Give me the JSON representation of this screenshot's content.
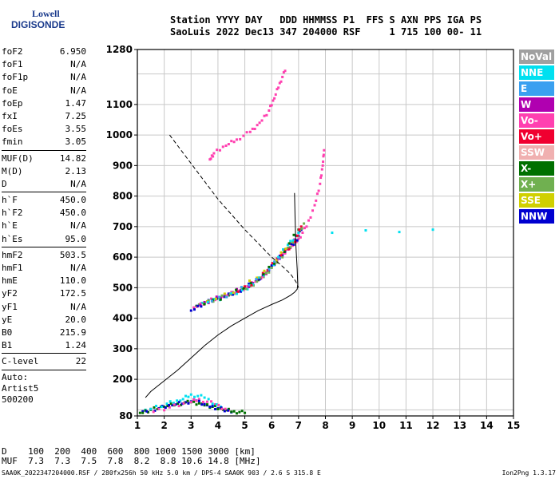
{
  "logo": {
    "line1": "Lowell",
    "line2": "DIGISONDE"
  },
  "header": {
    "line1": "Station YYYY DAY   DDD HHMMSS P1  FFS S AXN PPS IGA PS",
    "line2": "SaoLuis 2022 Dec13 347 204000 RSF     1 715 100 00- 11"
  },
  "params": [
    [
      {
        "k": "foF2",
        "v": "6.950"
      },
      {
        "k": "foF1",
        "v": "N/A"
      },
      {
        "k": "foF1p",
        "v": "N/A"
      },
      {
        "k": "foE",
        "v": "N/A"
      },
      {
        "k": "foEp",
        "v": "1.47"
      },
      {
        "k": "fxI",
        "v": "7.25"
      },
      {
        "k": "foEs",
        "v": "3.55"
      },
      {
        "k": "fmin",
        "v": "3.05"
      }
    ],
    [
      {
        "k": "MUF(D)",
        "v": "14.82"
      },
      {
        "k": "M(D)",
        "v": "2.13"
      },
      {
        "k": "D",
        "v": "N/A"
      }
    ],
    [
      {
        "k": "h`F",
        "v": "450.0"
      },
      {
        "k": "h`F2",
        "v": "450.0"
      },
      {
        "k": "h`E",
        "v": "N/A"
      },
      {
        "k": "h`Es",
        "v": "95.0"
      }
    ],
    [
      {
        "k": "hmF2",
        "v": "503.5"
      },
      {
        "k": "hmF1",
        "v": "N/A"
      },
      {
        "k": "hmE",
        "v": "110.0"
      },
      {
        "k": "yF2",
        "v": "172.5"
      },
      {
        "k": "yF1",
        "v": "N/A"
      },
      {
        "k": "yE",
        "v": "20.0"
      },
      {
        "k": "B0",
        "v": "215.9"
      },
      {
        "k": "B1",
        "v": "1.24"
      }
    ],
    [
      {
        "k": "C-level",
        "v": "22"
      }
    ]
  ],
  "auto": {
    "line1": "Auto:",
    "line2": "Artist5",
    "line3": "500200"
  },
  "legend": [
    {
      "label": "NoVal",
      "color": "#a0a0a0"
    },
    {
      "label": "NNE",
      "color": "#00e0f0"
    },
    {
      "label": "E",
      "color": "#3aa0f0"
    },
    {
      "label": "W",
      "color": "#b000b0"
    },
    {
      "label": "Vo-",
      "color": "#ff40b0"
    },
    {
      "label": "Vo+",
      "color": "#f00030"
    },
    {
      "label": "SSW",
      "color": "#f0b0b0"
    },
    {
      "label": "X-",
      "color": "#007000"
    },
    {
      "label": "X+",
      "color": "#70b050"
    },
    {
      "label": "SSE",
      "color": "#d0d000"
    },
    {
      "label": "NNW",
      "color": "#0000d0"
    }
  ],
  "bottom": {
    "line1": "D    100  200  400  600  800 1000 1500 3000 [km]",
    "line2": "MUF  7.3  7.3  7.5  7.8  8.2  8.8 10.6 14.8 [MHz]"
  },
  "footer": "SAA0K_2022347204000.RSF / 280fx256h 50 kHz 5.0 km / DPS-4 SAA0K 903 / 2.6 S 315.8 E",
  "version": "Ion2Png 1.3.17",
  "chart_data": {
    "type": "scatter",
    "xlim": [
      1,
      15
    ],
    "ylim": [
      80,
      1280
    ],
    "x_ticks": [
      1,
      2,
      3,
      4,
      5,
      6,
      7,
      8,
      9,
      10,
      11,
      12,
      13,
      14,
      15
    ],
    "y_ticks": [
      80,
      200,
      300,
      400,
      500,
      600,
      700,
      800,
      900,
      1000,
      1100,
      1280
    ],
    "y_ticks_minor_grid": [
      100,
      200,
      300,
      400,
      500,
      600,
      700,
      800,
      900,
      1000,
      1100,
      1200
    ],
    "grid": true,
    "series": [
      {
        "name": "Vo-",
        "type": "scatter",
        "color": "#ff40b0",
        "x": [
          3.1,
          3.6,
          4.2,
          4.8,
          5.4,
          5.9,
          6.3,
          6.7,
          7.0,
          7.3,
          7.6,
          7.8,
          7.9,
          7.95
        ],
        "y": [
          435,
          455,
          470,
          490,
          520,
          560,
          600,
          630,
          660,
          700,
          770,
          840,
          900,
          950
        ]
      },
      {
        "name": "W",
        "type": "scatter",
        "color": "#b000b0",
        "x": [
          3.2,
          3.8,
          4.4,
          5.0,
          5.6,
          6.0,
          6.4,
          6.8,
          7.0
        ],
        "y": [
          440,
          460,
          480,
          500,
          530,
          570,
          610,
          650,
          680
        ]
      },
      {
        "name": "NNW",
        "type": "scatter",
        "color": "#0000d0",
        "x": [
          3.0,
          3.5,
          4.1,
          4.7,
          5.3,
          5.8,
          6.2,
          6.6,
          6.9,
          7.1
        ],
        "y": [
          425,
          450,
          465,
          485,
          515,
          550,
          590,
          625,
          650,
          690
        ]
      },
      {
        "name": "X+",
        "type": "scatter",
        "color": "#70b050",
        "x": [
          3.3,
          4.0,
          4.6,
          5.2,
          5.7,
          6.1,
          6.5,
          6.9,
          7.2
        ],
        "y": [
          445,
          465,
          480,
          505,
          535,
          575,
          615,
          655,
          710
        ]
      },
      {
        "name": "NNE",
        "type": "scatter",
        "color": "#00e0f0",
        "x": [
          3.4,
          4.3,
          5.1,
          5.9,
          6.6,
          7.0,
          12.0
        ],
        "y": [
          450,
          470,
          495,
          560,
          640,
          680,
          690
        ]
      },
      {
        "name": "Vo+",
        "type": "scatter",
        "color": "#f00030",
        "x": [
          4.5,
          5.5,
          6.2,
          6.8,
          7.1
        ],
        "y": [
          478,
          525,
          595,
          640,
          700
        ]
      },
      {
        "name": "X-",
        "type": "scatter",
        "color": "#007000",
        "x": [
          3.2,
          4.4,
          5.5,
          6.3,
          7.0
        ],
        "y": [
          440,
          475,
          525,
          600,
          690
        ]
      },
      {
        "name": "SSE",
        "type": "scatter",
        "color": "#d0d000",
        "x": [
          3.6,
          4.9,
          6.0,
          6.7
        ],
        "y": [
          455,
          500,
          570,
          650
        ]
      },
      {
        "name": "E",
        "type": "scatter",
        "color": "#3aa0f0",
        "x": [
          3.5,
          4.6,
          5.7,
          6.5
        ],
        "y": [
          452,
          482,
          540,
          620
        ]
      },
      {
        "name": "Vo-",
        "type": "scatter",
        "color": "#ff40b0",
        "x": [
          3.7,
          3.85,
          4.3,
          4.7,
          5.2,
          5.55,
          5.9,
          6.1,
          6.3,
          6.5
        ],
        "y": [
          920,
          940,
          965,
          985,
          1010,
          1040,
          1080,
          1120,
          1170,
          1210
        ]
      },
      {
        "name": "X-",
        "type": "scatter",
        "color": "#007000",
        "x": [
          1.1,
          1.5,
          2.0,
          2.5,
          3.0,
          3.4,
          3.8,
          4.2,
          4.6,
          5.0
        ],
        "y": [
          90,
          100,
          110,
          120,
          125,
          120,
          110,
          100,
          95,
          90
        ]
      },
      {
        "name": "NNW",
        "type": "scatter",
        "color": "#0000d0",
        "x": [
          1.2,
          1.8,
          2.3,
          2.8,
          3.2,
          3.6,
          4.0,
          4.5
        ],
        "y": [
          95,
          105,
          115,
          125,
          130,
          115,
          105,
          92
        ]
      },
      {
        "name": "NNE",
        "type": "scatter",
        "color": "#00e0f0",
        "x": [
          1.3,
          2.1,
          2.6,
          3.0,
          3.5,
          4.1
        ],
        "y": [
          100,
          120,
          130,
          150,
          140,
          110
        ]
      },
      {
        "name": "Vo-",
        "type": "scatter",
        "color": "#ff40b0",
        "x": [
          1.4,
          2.2,
          2.9,
          3.3,
          3.9,
          4.4
        ],
        "y": [
          92,
          108,
          122,
          135,
          118,
          98
        ]
      }
    ],
    "profile_solid": {
      "x": [
        1.3,
        1.5,
        2.0,
        2.5,
        3.0,
        3.5,
        4.0,
        4.5,
        5.0,
        5.5,
        6.0,
        6.4,
        6.7,
        6.85,
        6.95,
        6.97,
        6.95,
        6.9,
        6.87,
        6.85
      ],
      "y": [
        140,
        160,
        195,
        230,
        270,
        310,
        345,
        375,
        400,
        425,
        445,
        460,
        475,
        485,
        495,
        510,
        560,
        640,
        730,
        810
      ]
    },
    "profile_dashed": {
      "x": [
        2.2,
        2.8,
        3.4,
        4.0,
        4.5,
        5.0,
        5.5,
        6.0,
        6.4,
        6.7,
        6.9,
        7.0
      ],
      "y": [
        1000,
        930,
        860,
        790,
        740,
        690,
        645,
        600,
        570,
        545,
        520,
        500
      ]
    }
  }
}
